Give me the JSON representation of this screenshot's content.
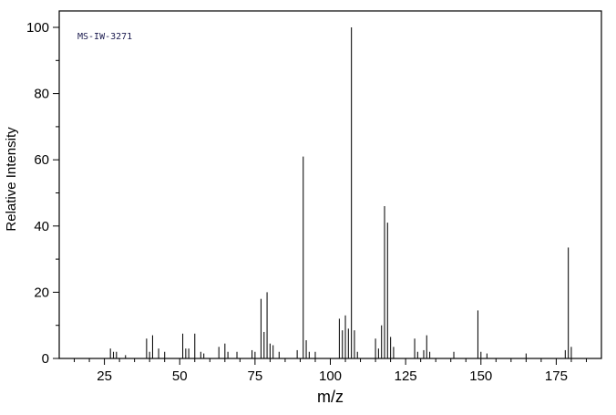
{
  "figure": {
    "annotation": "MS-IW-3271",
    "xlabel": "m/z",
    "ylabel": "Relative Intensity"
  },
  "chart_data": {
    "type": "bar",
    "title": "",
    "subtitle": "",
    "annotation": "MS-IW-3271",
    "xlabel": "m/z",
    "ylabel": "Relative Intensity",
    "xlim": [
      10,
      190
    ],
    "ylim": [
      0,
      100
    ],
    "x_major_ticks": [
      25,
      50,
      75,
      100,
      125,
      150,
      175
    ],
    "x_minor_step": 5,
    "y_major_ticks": [
      0,
      20,
      40,
      60,
      80,
      100
    ],
    "y_minor_step": 10,
    "grid": false,
    "legend": "none",
    "line_color": "#111111",
    "border_color": "#000000",
    "peaks": [
      [
        27,
        3
      ],
      [
        28,
        2
      ],
      [
        29,
        2
      ],
      [
        32,
        1
      ],
      [
        39,
        6
      ],
      [
        40,
        2
      ],
      [
        41,
        7
      ],
      [
        43,
        3
      ],
      [
        45,
        2
      ],
      [
        51,
        7.5
      ],
      [
        52,
        3
      ],
      [
        53,
        3
      ],
      [
        55,
        7.5
      ],
      [
        57,
        2
      ],
      [
        58,
        1.5
      ],
      [
        63,
        3.5
      ],
      [
        65,
        4.5
      ],
      [
        66,
        2
      ],
      [
        69,
        2
      ],
      [
        74,
        2.5
      ],
      [
        75,
        2
      ],
      [
        77,
        18
      ],
      [
        78,
        8
      ],
      [
        79,
        20
      ],
      [
        80,
        4.5
      ],
      [
        81,
        4
      ],
      [
        83,
        2
      ],
      [
        89,
        2.5
      ],
      [
        91,
        61
      ],
      [
        92,
        5.5
      ],
      [
        93,
        2
      ],
      [
        95,
        2
      ],
      [
        103,
        12
      ],
      [
        104,
        8.5
      ],
      [
        105,
        13
      ],
      [
        106,
        9
      ],
      [
        107,
        100
      ],
      [
        108,
        8.5
      ],
      [
        109,
        2
      ],
      [
        115,
        6
      ],
      [
        116,
        3
      ],
      [
        117,
        10
      ],
      [
        118,
        46
      ],
      [
        119,
        41
      ],
      [
        120,
        6.5
      ],
      [
        121,
        3.5
      ],
      [
        128,
        6
      ],
      [
        129,
        2
      ],
      [
        131,
        2.5
      ],
      [
        132,
        7
      ],
      [
        133,
        2
      ],
      [
        141,
        2
      ],
      [
        149,
        14.5
      ],
      [
        150,
        2
      ],
      [
        152,
        1.5
      ],
      [
        165,
        1.5
      ],
      [
        178,
        2.5
      ],
      [
        179,
        33.5
      ],
      [
        180,
        3.5
      ]
    ]
  }
}
